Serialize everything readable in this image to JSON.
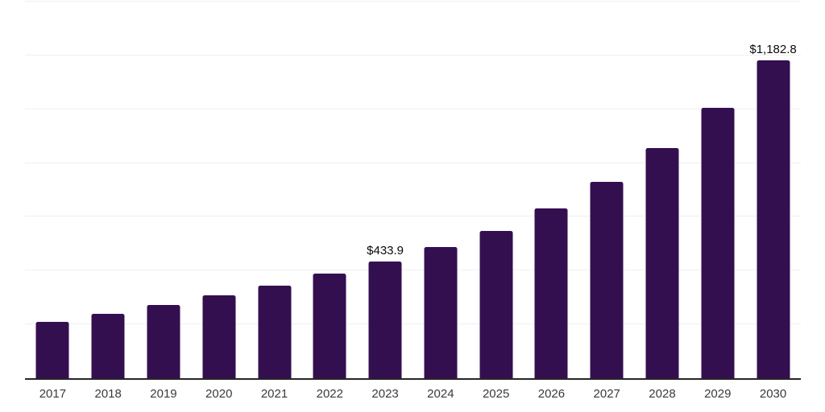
{
  "chart_data": {
    "type": "bar",
    "title": "",
    "categories": [
      "2017",
      "2018",
      "2019",
      "2020",
      "2021",
      "2022",
      "2023",
      "2024",
      "2025",
      "2026",
      "2027",
      "2028",
      "2029",
      "2030"
    ],
    "values": [
      210,
      240,
      272,
      308,
      344,
      389,
      433.9,
      487,
      548,
      630,
      731,
      855,
      1005,
      1182.8
    ],
    "data_labels": {
      "2023": "$433.9",
      "2030": "$1,182.8"
    },
    "xlabel": "",
    "ylabel": "",
    "ylim": [
      0,
      1400
    ],
    "gridline_step": 200,
    "legend": "none",
    "grid": "horizontal gridlines only, no y-axis tick labels, no y-axis line"
  },
  "style": {
    "bar_color": "#340f50",
    "gridline_color": "#f0f0f0",
    "axis_color": "#262626",
    "tick_label_color": "#3a3a3a",
    "value_label_color": "#0a0a0a",
    "background": "#ffffff"
  }
}
